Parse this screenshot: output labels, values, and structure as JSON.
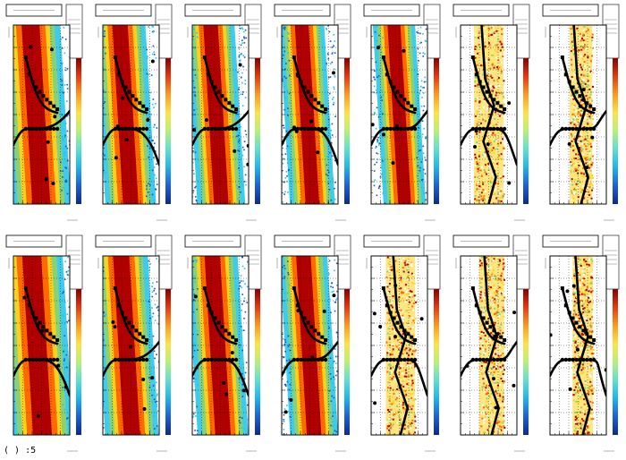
{
  "window": {
    "status_text": "( ) :5"
  },
  "colors": {
    "heat_hot": "#b10000",
    "heat_orange": "#ff6a00",
    "heat_yellow": "#ffd21a",
    "heat_green": "#8fd16c",
    "heat_cyan": "#1fc2e8",
    "heat_blue": "#1c4fb8",
    "palette": [
      "#0b2a8f",
      "#1d5fd6",
      "#1fb4ee",
      "#5fe0d0",
      "#b7f07a",
      "#ffe14a",
      "#ff9a1f",
      "#e8380e",
      "#8a0000"
    ]
  },
  "chart_data": [
    {
      "type": "heatmap",
      "panel": "row1-col1",
      "core_center": 0.4,
      "core_width": 0.42,
      "sparse": false
    },
    {
      "type": "heatmap",
      "panel": "row1-col2",
      "core_center": 0.4,
      "core_width": 0.36,
      "sparse": false
    },
    {
      "type": "heatmap",
      "panel": "row1-col3",
      "core_center": 0.42,
      "core_width": 0.34,
      "sparse": false
    },
    {
      "type": "heatmap",
      "panel": "row1-col4",
      "core_center": 0.45,
      "core_width": 0.32,
      "sparse": false
    },
    {
      "type": "heatmap",
      "panel": "row1-col5",
      "core_center": 0.5,
      "core_width": 0.3,
      "sparse": false
    },
    {
      "type": "heatmap",
      "panel": "row1-col6",
      "core_center": 0.5,
      "core_width": 0.26,
      "sparse": true
    },
    {
      "type": "heatmap",
      "panel": "row1-col7",
      "core_center": 0.55,
      "core_width": 0.2,
      "sparse": true
    },
    {
      "type": "heatmap",
      "panel": "row2-col1",
      "core_center": 0.42,
      "core_width": 0.44,
      "sparse": false
    },
    {
      "type": "heatmap",
      "panel": "row2-col2",
      "core_center": 0.42,
      "core_width": 0.38,
      "sparse": false
    },
    {
      "type": "heatmap",
      "panel": "row2-col3",
      "core_center": 0.45,
      "core_width": 0.36,
      "sparse": false
    },
    {
      "type": "heatmap",
      "panel": "row2-col4",
      "core_center": 0.48,
      "core_width": 0.34,
      "sparse": false
    },
    {
      "type": "heatmap",
      "panel": "row2-col5",
      "core_center": 0.52,
      "core_width": 0.26,
      "sparse": true
    },
    {
      "type": "heatmap",
      "panel": "row2-col6",
      "core_center": 0.55,
      "core_width": 0.22,
      "sparse": true
    },
    {
      "type": "heatmap",
      "panel": "row2-col7",
      "core_center": 0.58,
      "core_width": 0.18,
      "sparse": true
    }
  ]
}
